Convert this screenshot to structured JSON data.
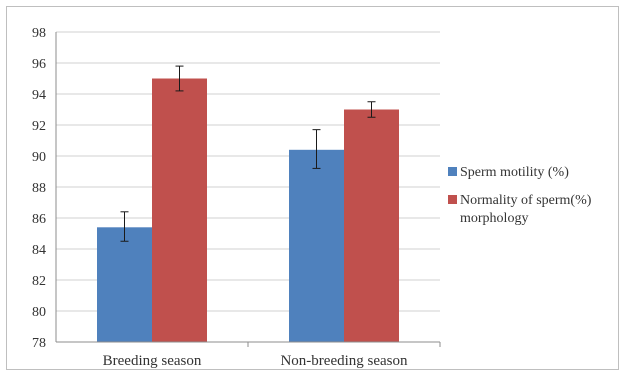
{
  "chart_data": {
    "type": "bar",
    "title": "",
    "xlabel": "",
    "ylabel": "",
    "categories": [
      "Breeding season",
      "Non-breeding season"
    ],
    "series": [
      {
        "name": "Sperm motility (%)",
        "color": "#4f81bd",
        "values": [
          85.4,
          90.4
        ],
        "error_low": [
          84.5,
          89.2
        ],
        "error_high": [
          86.4,
          91.7
        ]
      },
      {
        "name": "Normality of sperm(%)",
        "name_line2": "morphology",
        "color": "#c0504d",
        "values": [
          95.0,
          93.0
        ],
        "error_low": [
          94.2,
          92.5
        ],
        "error_high": [
          95.8,
          93.5
        ]
      }
    ],
    "ylim": [
      78,
      98
    ],
    "y_ticks": [
      78,
      80,
      82,
      84,
      86,
      88,
      90,
      92,
      94,
      96,
      98
    ],
    "grid": true,
    "legend_position": "right"
  }
}
